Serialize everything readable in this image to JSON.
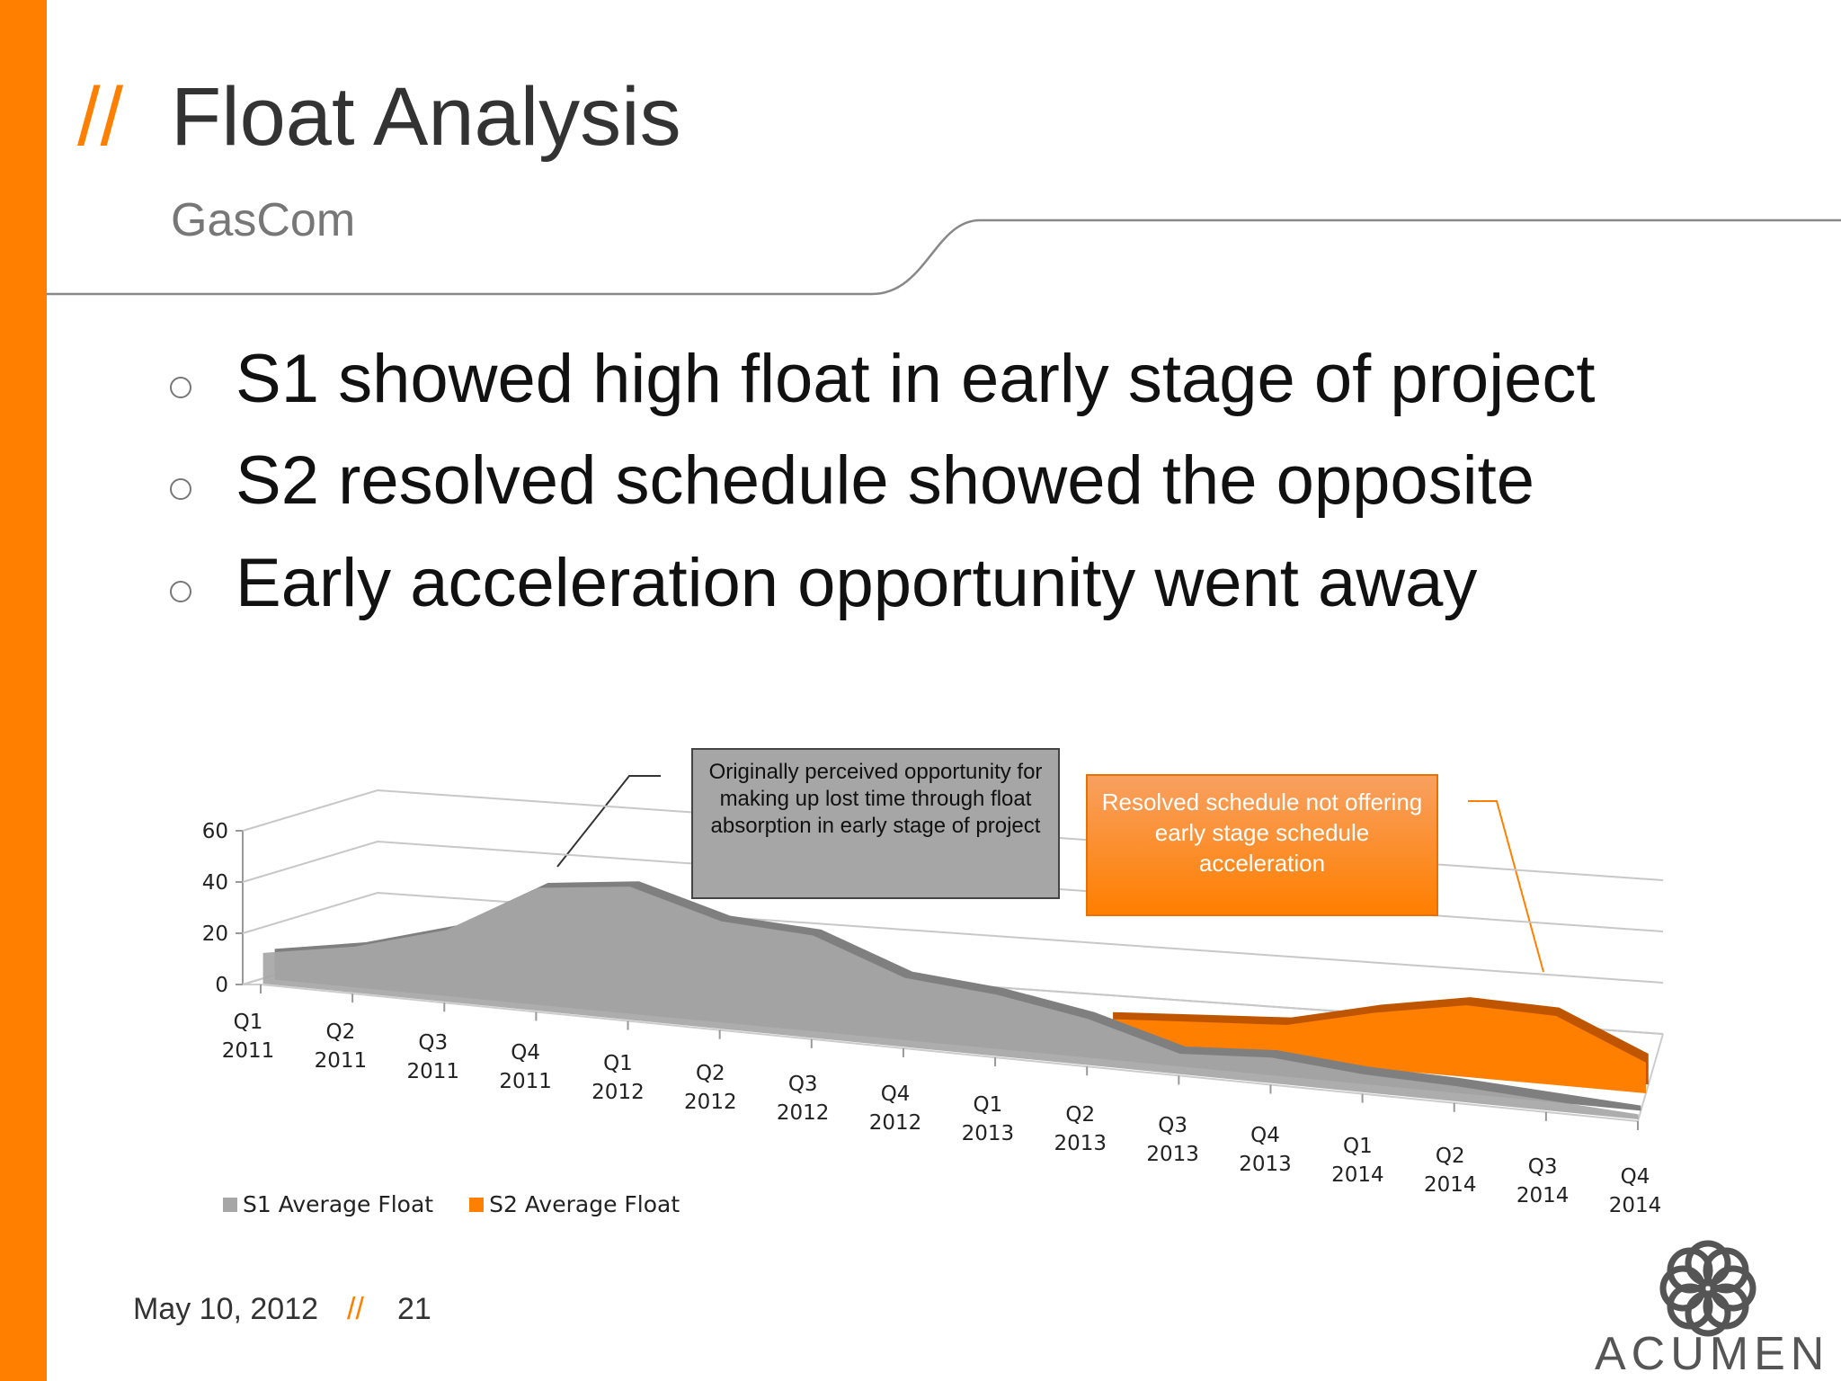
{
  "header": {
    "title_prefix": "//",
    "title": "Float Analysis",
    "subtitle": "GasCom"
  },
  "bullets": [
    "S1 showed high float in early stage of project",
    "S2 resolved schedule showed the opposite",
    "Early acceleration opportunity went away"
  ],
  "chart_data": {
    "type": "area",
    "categories": [
      "Q1 2011",
      "Q2 2011",
      "Q3 2011",
      "Q4 2011",
      "Q1 2012",
      "Q2 2012",
      "Q3 2012",
      "Q4 2012",
      "Q1 2013",
      "Q2 2013",
      "Q3 2013",
      "Q4 2013",
      "Q1 2014",
      "Q2 2014",
      "Q3 2014",
      "Q4 2014"
    ],
    "series": [
      {
        "name": "S1 Average Float",
        "color": "#a6a6a6",
        "values": [
          12,
          18,
          28,
          48,
          52,
          42,
          40,
          27,
          24,
          18,
          8,
          10,
          7,
          6,
          4,
          2
        ]
      },
      {
        "name": "S2 Average Float",
        "color": "#ff7f00",
        "values": [
          null,
          null,
          null,
          null,
          null,
          null,
          null,
          null,
          null,
          10,
          12,
          14,
          22,
          28,
          27,
          12
        ]
      }
    ],
    "ylim": [
      0,
      60
    ],
    "yticks": [
      0,
      20,
      40,
      60
    ],
    "grid": true,
    "annotations": [
      "Originally perceived opportunity for making up lost time through float absorption in early stage of project",
      "Resolved schedule not offering early stage schedule acceleration"
    ]
  },
  "footer": {
    "date": "May 10, 2012",
    "separator": "//",
    "page": "21"
  },
  "logo": {
    "text": "ACUMEN"
  }
}
